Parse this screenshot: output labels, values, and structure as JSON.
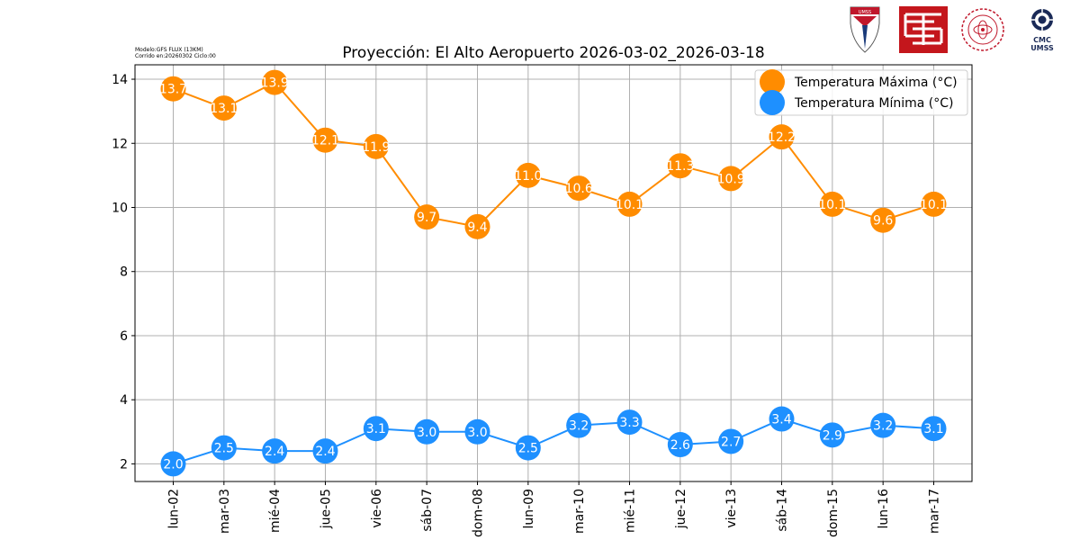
{
  "header": {
    "model_line1": "Modelo:GFS FLUX (13KM)",
    "model_line2": "Corrido en:20260302 Ciclo:00",
    "logos": [
      {
        "name": "umss-shield-logo",
        "text": "UMSS"
      },
      {
        "name": "red-maze-logo"
      },
      {
        "name": "seal-logo"
      },
      {
        "name": "cmc-umss-logo",
        "text": "CMC UMSS"
      }
    ]
  },
  "colors": {
    "max": "#ff8c00",
    "min": "#1e90ff",
    "grid": "#b0b0b0",
    "umss_red": "#c0172b",
    "cmc_navy": "#1a2a57"
  },
  "chart_data": {
    "type": "line",
    "title": "Proyección: El Alto Aeropuerto 2026-03-02_2026-03-18",
    "xlabel": "",
    "ylabel": "",
    "categories": [
      "lun-02",
      "mar-03",
      "mié-04",
      "jue-05",
      "vie-06",
      "sáb-07",
      "dom-08",
      "lun-09",
      "mar-10",
      "mié-11",
      "jue-12",
      "vie-13",
      "sáb-14",
      "dom-15",
      "lun-16",
      "mar-17"
    ],
    "series": [
      {
        "name": "Temperatura Máxima  (°C)",
        "color": "#ff8c00",
        "values": [
          13.7,
          13.1,
          13.9,
          12.1,
          11.9,
          9.7,
          9.4,
          11.0,
          10.6,
          10.1,
          11.3,
          10.9,
          12.2,
          10.1,
          9.6,
          10.1
        ],
        "labels": [
          "13.7",
          "13.1",
          "13.9",
          "12.1",
          "11.9",
          "9.7",
          "9.4",
          "11.0",
          "10.6",
          "10.1",
          "11.3",
          "10.9",
          "12.2",
          "10.1",
          "9.6",
          "10.1"
        ]
      },
      {
        "name": "Temperatura Mínima  (°C)",
        "color": "#1e90ff",
        "values": [
          2.0,
          2.5,
          2.4,
          2.4,
          3.1,
          3.0,
          3.0,
          2.5,
          3.2,
          3.3,
          2.6,
          2.7,
          3.4,
          2.9,
          3.2,
          3.1
        ],
        "labels": [
          "2.0",
          "2.5",
          "2.4",
          "2.4",
          "3.1",
          "3.0",
          "3.0",
          "2.5",
          "3.2",
          "3.3",
          "2.6",
          "2.7",
          "3.4",
          "2.9",
          "3.2",
          "3.1"
        ]
      }
    ],
    "yticks": [
      "2",
      "4",
      "6",
      "8",
      "10",
      "12",
      "14"
    ],
    "ylim": [
      1.45,
      14.45
    ],
    "grid": true,
    "legend_position": "top-right"
  }
}
